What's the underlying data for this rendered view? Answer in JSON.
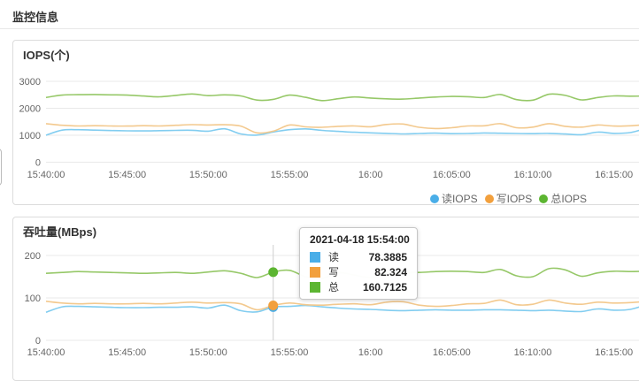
{
  "page": {
    "title": "监控信息"
  },
  "chart_data": [
    {
      "type": "line",
      "title": "IOPS(个)",
      "x_labels": [
        "15:40:00",
        "15:45:00",
        "15:50:00",
        "15:55:00",
        "16:00",
        "16:05:00",
        "16:10:00",
        "16:15:00"
      ],
      "y_ticks": [
        3000,
        2000,
        1000,
        0
      ],
      "ylim": [
        0,
        3000
      ],
      "grid": true,
      "legend_position": "bottom-right",
      "x_start": "15:40:00",
      "x_step_seconds": 60,
      "series": [
        {
          "name": "读IOPS",
          "color": "#4aaee8",
          "line_color": "#82cdf0",
          "values": [
            1000,
            1190,
            1205,
            1190,
            1175,
            1165,
            1160,
            1170,
            1180,
            1185,
            1150,
            1240,
            1050,
            1005,
            1120,
            1205,
            1235,
            1180,
            1145,
            1110,
            1090,
            1070,
            1050,
            1065,
            1080,
            1060,
            1065,
            1085,
            1075,
            1065,
            1060,
            1070,
            1045,
            1020,
            1115,
            1070,
            1100,
            1260
          ]
        },
        {
          "name": "写IOPS",
          "color": "#f2a03d",
          "line_color": "#f3c98e",
          "values": [
            1430,
            1370,
            1345,
            1355,
            1345,
            1340,
            1355,
            1345,
            1370,
            1395,
            1380,
            1390,
            1340,
            1090,
            1150,
            1380,
            1310,
            1295,
            1330,
            1345,
            1315,
            1400,
            1415,
            1295,
            1250,
            1280,
            1345,
            1350,
            1430,
            1280,
            1300,
            1430,
            1330,
            1300,
            1380,
            1340,
            1350,
            1400
          ]
        },
        {
          "name": "总IOPS",
          "color": "#5cb531",
          "line_color": "#96c868",
          "values": [
            2400,
            2490,
            2505,
            2510,
            2500,
            2490,
            2455,
            2425,
            2480,
            2530,
            2470,
            2500,
            2460,
            2305,
            2330,
            2490,
            2405,
            2285,
            2355,
            2420,
            2380,
            2350,
            2340,
            2380,
            2415,
            2440,
            2430,
            2400,
            2510,
            2320,
            2300,
            2520,
            2480,
            2310,
            2400,
            2460,
            2450,
            2460
          ]
        }
      ]
    },
    {
      "type": "line",
      "title": "吞吐量(MBps)",
      "x_labels": [
        "15:40:00",
        "15:45:00",
        "15:50:00",
        "15:55:00",
        "16:00",
        "16:05:00",
        "16:10:00",
        "16:15:00"
      ],
      "y_ticks": [
        200,
        100,
        0
      ],
      "ylim": [
        0,
        200
      ],
      "grid": true,
      "x_start": "15:40:00",
      "x_step_seconds": 60,
      "series": [
        {
          "name": "读",
          "color": "#4aaee8",
          "line_color": "#82cdf0",
          "values": [
            66,
            79,
            80,
            79,
            78,
            77,
            77,
            78,
            78,
            79,
            76,
            83,
            70,
            67,
            78.3885,
            80,
            82,
            79,
            76,
            74,
            73,
            71,
            70,
            71,
            72,
            71,
            71,
            72,
            72,
            71,
            70,
            71,
            69,
            68,
            74,
            71,
            73,
            84
          ]
        },
        {
          "name": "写",
          "color": "#f2a03d",
          "line_color": "#f3c98e",
          "values": [
            92,
            88,
            86,
            87,
            86,
            86,
            87,
            86,
            88,
            90,
            88,
            89,
            86,
            72,
            82.324,
            88,
            84,
            83,
            85,
            86,
            84,
            90,
            91,
            83,
            80,
            82,
            86,
            87,
            95,
            84,
            85,
            95,
            88,
            85,
            90,
            88,
            89,
            92
          ]
        },
        {
          "name": "总",
          "color": "#5cb531",
          "line_color": "#96c868",
          "values": [
            158,
            160,
            162,
            161,
            160,
            159,
            158,
            159,
            160,
            158,
            161,
            164,
            158,
            148,
            160.7125,
            165,
            150,
            146,
            159,
            154,
            148,
            158,
            159,
            160,
            162,
            163,
            162,
            160,
            167,
            152,
            150,
            169,
            166,
            151,
            159,
            163,
            162,
            163
          ]
        }
      ],
      "tooltip": {
        "title": "2021-04-18 15:54:00",
        "x_index": 14,
        "rows": [
          {
            "label": "读",
            "value": "78.3885",
            "color": "#4aaee8"
          },
          {
            "label": "写",
            "value": "82.324",
            "color": "#f2a03d"
          },
          {
            "label": "总",
            "value": "160.7125",
            "color": "#5cb531"
          }
        ]
      }
    }
  ]
}
